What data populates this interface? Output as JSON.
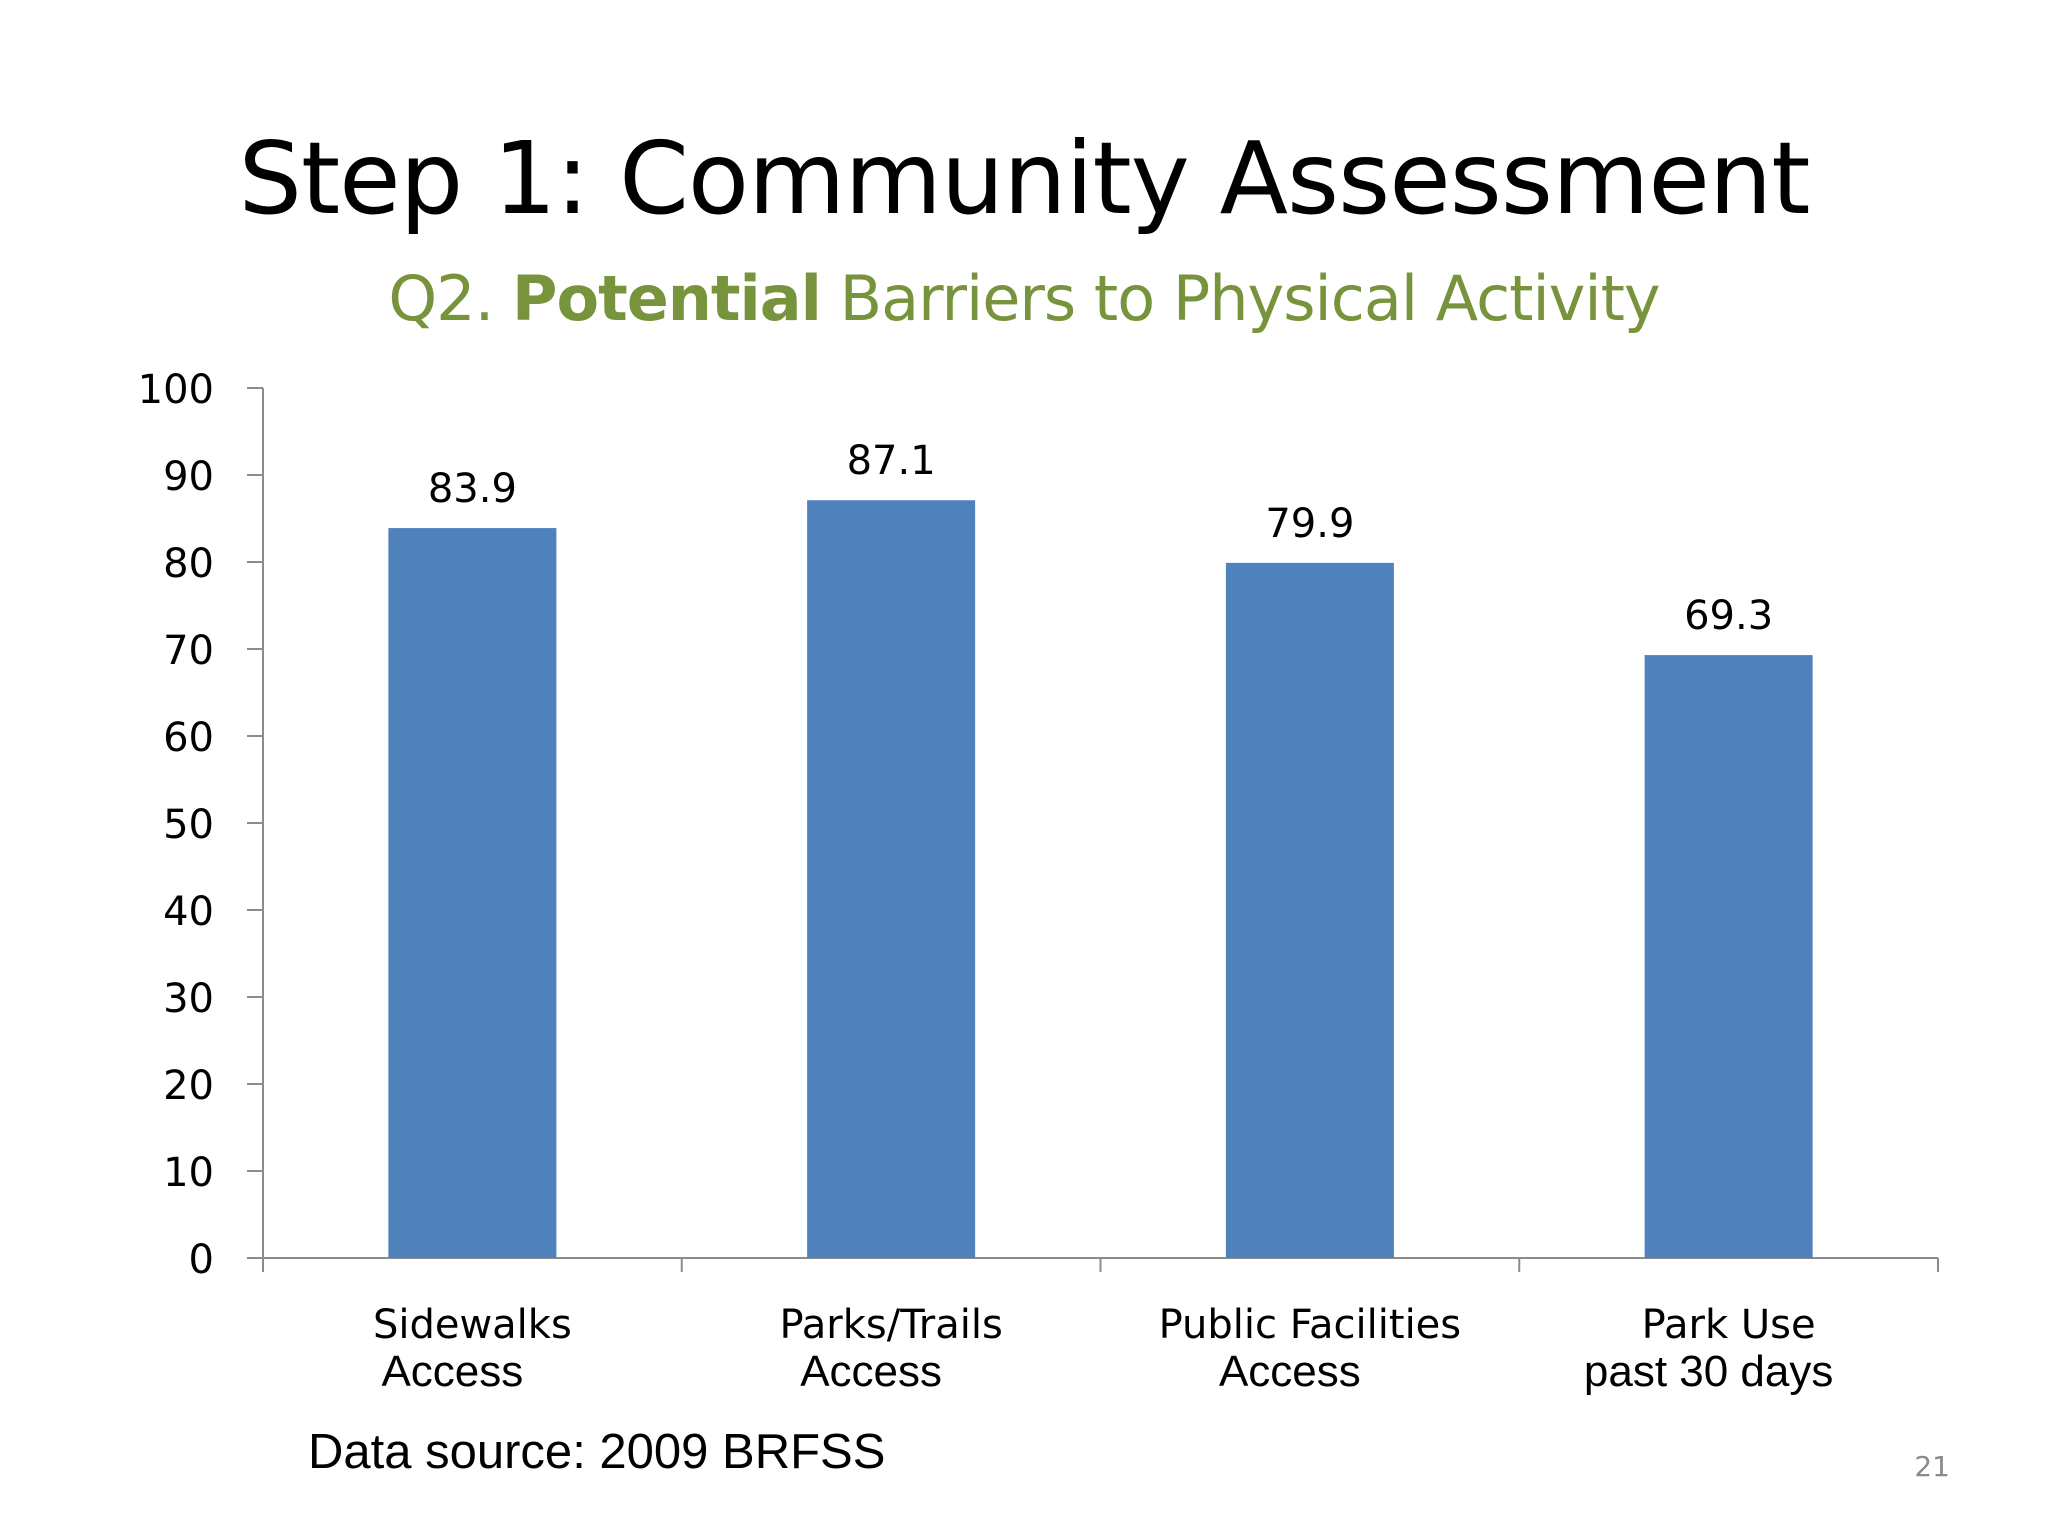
{
  "slide": {
    "title": "Step 1: Community Assessment",
    "subtitle_prefix": "Q2.",
    "subtitle_bold": "Potential",
    "subtitle_rest": "Barriers to Physical Activity",
    "source": "Data source: 2009 BRFSS",
    "page_number": "21"
  },
  "colors": {
    "bar": "#4f81bd",
    "subtitle": "#77933c",
    "axis": "#8c8c8c",
    "title": "#000000"
  },
  "chart_data": {
    "type": "bar",
    "categories": [
      {
        "line1": "Sidewalks",
        "line2": "Access"
      },
      {
        "line1": "Parks/Trails",
        "line2": "Access"
      },
      {
        "line1": "Public Facilities",
        "line2": "Access"
      },
      {
        "line1": "Park Use",
        "line2": "past 30 days"
      }
    ],
    "values": [
      83.9,
      87.1,
      79.9,
      69.3
    ],
    "value_labels": [
      "83.9",
      "87.1",
      "79.9",
      "69.3"
    ],
    "ylim": [
      0,
      100
    ],
    "yticks": [
      0,
      10,
      20,
      30,
      40,
      50,
      60,
      70,
      80,
      90,
      100
    ],
    "grid": false,
    "legend": "none"
  }
}
